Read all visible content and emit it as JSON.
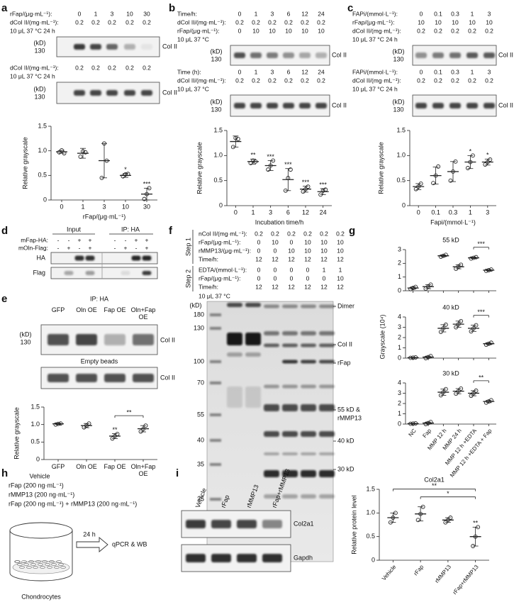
{
  "figure": {
    "a": {
      "letter": "a",
      "conditions": [
        {
          "label": "rFap/(μg·mL⁻¹):",
          "values": [
            0,
            1,
            3,
            10,
            30
          ]
        },
        {
          "label": "dCol II/(mg·mL⁻¹):",
          "values": [
            0.2,
            0.2,
            0.2,
            0.2,
            0.2
          ]
        }
      ],
      "note": "10 μL 37 °C 24 h",
      "conditions2": [
        {
          "label": "dCol II/(mg·mL⁻¹):",
          "values": [
            0.2,
            0.2,
            0.2,
            0.2,
            0.2
          ]
        }
      ],
      "note2": "10 μL 37 °C 24 h",
      "blots": [
        {
          "kd": "(kD)",
          "marker": 130,
          "label": "Col II"
        },
        {
          "kd": "(kD)",
          "marker": 130,
          "label": "Col II"
        }
      ]
    },
    "b": {
      "letter": "b",
      "conditions": [
        {
          "label": "Time/h:",
          "values": [
            0,
            1,
            3,
            6,
            12,
            24
          ]
        },
        {
          "label": "dCol II/(mg·mL⁻¹):",
          "values": [
            0.2,
            0.2,
            0.2,
            0.2,
            0.2,
            0.2
          ]
        },
        {
          "label": "rFap/(μg·mL⁻¹):",
          "values": [
            0,
            10,
            10,
            10,
            10,
            10
          ]
        }
      ],
      "note": "10 μL 37 °C",
      "conditions2": [
        {
          "label": "Time (h):",
          "values": [
            0,
            1,
            3,
            6,
            12,
            24
          ]
        },
        {
          "label": "dCol II/(mg·mL⁻¹):",
          "values": [
            0.2,
            0.2,
            0.2,
            0.2,
            0.2,
            0.2
          ]
        }
      ],
      "note2": "10 μL 37 °C",
      "blots": [
        {
          "kd": "(kD)",
          "marker": 130,
          "label": "Col II"
        },
        {
          "kd": "(kD)",
          "marker": 130,
          "label": "Col II"
        }
      ]
    },
    "c": {
      "letter": "c",
      "conditions": [
        {
          "label": "FAPi/(mmol·L⁻¹):",
          "values": [
            0,
            0.1,
            0.3,
            1,
            3
          ]
        },
        {
          "label": "rFap/(μg·mL⁻¹):",
          "values": [
            10,
            10,
            10,
            10,
            10
          ]
        },
        {
          "label": "dCol II/(mg·mL⁻¹):",
          "values": [
            0.2,
            0.2,
            0.2,
            0.2,
            0.2
          ]
        }
      ],
      "note": "10 μL 37 °C 24 h",
      "conditions2": [
        {
          "label": "FAPi/(mmol·L⁻¹):",
          "values": [
            0,
            0.1,
            0.3,
            1,
            3
          ]
        },
        {
          "label": "dCol II/(mg·mL⁻¹):",
          "values": [
            0.2,
            0.2,
            0.2,
            0.2,
            0.2
          ]
        }
      ],
      "note2": "10 μL 37 °C 24 h",
      "blots": [
        {
          "kd": "(kD)",
          "marker": 130,
          "label": "Col II"
        },
        {
          "kd": "(kD)",
          "marker": 130,
          "label": "Col II"
        }
      ]
    },
    "d": {
      "letter": "d",
      "input": "Input",
      "ip": "IP: HA",
      "rows": [
        {
          "label": "mFap-HA:",
          "values": [
            "-",
            "-",
            "+",
            "+",
            "-",
            "-",
            "+",
            "+"
          ]
        },
        {
          "label": "mOln-Flag:",
          "values": [
            "-",
            "+",
            "-",
            "+",
            "-",
            "+",
            "-",
            "+"
          ]
        }
      ],
      "blots": [
        "HA",
        "Flag"
      ]
    },
    "e": {
      "letter": "e",
      "ip": "IP: HA",
      "lanes": [
        "GFP",
        "Oln OE",
        "Fap OE",
        "Oln+Fap OE"
      ],
      "kd": "(kD)",
      "marker": 130,
      "label": "Col II",
      "empty": "Empty beads",
      "label2": "Col II"
    },
    "f": {
      "letter": "f",
      "step1": "Step 1",
      "step2": "Step 2",
      "rows1": [
        {
          "label": "nCol II/(mg·mL⁻¹):",
          "values": [
            0.2,
            0.2,
            0.2,
            0.2,
            0.2,
            0.2
          ]
        },
        {
          "label": "rFap/(μg·mL⁻¹):",
          "values": [
            0,
            10,
            0,
            10,
            10,
            10
          ]
        },
        {
          "label": "rMMP13/(μg·mL⁻¹):",
          "values": [
            0,
            0,
            10,
            10,
            10,
            10
          ]
        },
        {
          "label": "Time/h:",
          "values": [
            12,
            12,
            12,
            12,
            12,
            12
          ]
        }
      ],
      "rows2": [
        {
          "label": "EDTA/(mmol·L⁻¹):",
          "values": [
            0,
            0,
            0,
            0,
            1,
            1
          ]
        },
        {
          "label": "rFap/(μg·mL⁻¹):",
          "values": [
            0,
            0,
            0,
            0,
            0,
            10
          ]
        },
        {
          "label": "Time/h:",
          "values": [
            12,
            12,
            12,
            12,
            12,
            12
          ]
        }
      ],
      "note": "10 μL 37 °C",
      "kd": "(kD)",
      "markers": [
        180,
        130,
        100,
        70,
        55,
        40,
        35,
        25
      ],
      "bands": [
        "Dimer",
        "Col II",
        "rFap",
        "55 kD &",
        "rMMP13",
        "40 kD",
        "30 kD"
      ]
    },
    "g": {
      "letter": "g"
    },
    "h": {
      "letter": "h",
      "vehicle": "Vehicle",
      "treatments": [
        "rFap (200 ng·mL⁻¹)",
        "rMMP13 (200 ng·mL⁻¹)",
        "rFap (200 ng·mL⁻¹) + rMMP13 (200 ng·mL⁻¹)"
      ],
      "time": "24 h",
      "readout": "qPCR & WB",
      "cells": "Chondrocytes"
    },
    "i": {
      "letter": "i",
      "lanes": [
        "Vehicle",
        "rFap",
        "rMMP13",
        "rFap+rMMP13"
      ],
      "blots": [
        "Col2a1",
        "Gapdh"
      ]
    }
  },
  "chart_data": [
    {
      "type": "dot",
      "categories": [
        "0",
        "1",
        "3",
        "10",
        "30"
      ],
      "ylabel": "Relative grayscale",
      "xlabel": "rFap/(μg·mL⁻¹)",
      "ylim": [
        0,
        1.5
      ],
      "yticks": [
        0,
        0.5,
        {
          "value": 1,
          "label": "1.0"
        },
        1.5
      ],
      "color": "#222222",
      "values": [
        0.98,
        0.95,
        0.8,
        0.5,
        0.12
      ],
      "errors": [
        0.03,
        0.1,
        0.35,
        0.04,
        0.12
      ],
      "points": [
        [
          0.97,
          1.01,
          0.95
        ],
        [
          0.88,
          0.99,
          0.97
        ],
        [
          0.45,
          1.15,
          0.8
        ],
        [
          0.48,
          0.52,
          0.53
        ],
        [
          0.02,
          0.12,
          0.24
        ]
      ],
      "significance": [
        null,
        null,
        null,
        "*",
        "***"
      ]
    },
    {
      "type": "dot",
      "categories": [
        "0",
        "1",
        "3",
        "6",
        "12",
        "24"
      ],
      "ylabel": "Relative grayscale",
      "xlabel": "Incubation time/h",
      "ylim": [
        0,
        1.5
      ],
      "yticks": [
        0,
        0.5,
        {
          "value": 1,
          "label": "1.0"
        },
        1.5
      ],
      "color": "#222222",
      "values": [
        1.28,
        0.88,
        0.8,
        0.52,
        0.33,
        0.28
      ],
      "errors": [
        0.11,
        0.05,
        0.1,
        0.22,
        0.06,
        0.06
      ],
      "points": [
        [
          1.17,
          1.35,
          1.33
        ],
        [
          0.85,
          0.9,
          0.88
        ],
        [
          0.72,
          0.8,
          0.9
        ],
        [
          0.3,
          0.55,
          0.72
        ],
        [
          0.28,
          0.33,
          0.38
        ],
        [
          0.22,
          0.3,
          0.32
        ]
      ],
      "significance": [
        null,
        "**",
        "***",
        "***",
        "***",
        "***"
      ]
    },
    {
      "type": "dot",
      "categories": [
        "0",
        "0.1",
        "0.3",
        "1",
        "3"
      ],
      "ylabel": "Relative grayscale",
      "xlabel": "Fapi/(mmol·L⁻¹)",
      "ylim": [
        0,
        1.5
      ],
      "yticks": [
        0,
        0.5,
        {
          "value": 1,
          "label": "1.0"
        },
        1.5
      ],
      "color": "#222222",
      "values": [
        0.38,
        0.6,
        0.68,
        0.87,
        0.87
      ],
      "errors": [
        0.06,
        0.17,
        0.2,
        0.13,
        0.06
      ],
      "points": [
        [
          0.33,
          0.38,
          0.44
        ],
        [
          0.45,
          0.6,
          0.78
        ],
        [
          0.5,
          0.68,
          0.88
        ],
        [
          0.75,
          0.87,
          1.0
        ],
        [
          0.82,
          0.87,
          0.92
        ]
      ],
      "significance": [
        null,
        null,
        null,
        "*",
        "*"
      ]
    },
    {
      "type": "dot",
      "categories": [
        "GFP",
        "Oln OE",
        "Fap OE",
        "Oln+Fap OE"
      ],
      "ylabel": "Relative grayscale",
      "ylim": [
        0,
        1.5
      ],
      "yticks": [
        0,
        0.5,
        {
          "value": 1,
          "label": "1.0"
        },
        1.5
      ],
      "color": "#222222",
      "values": [
        1.02,
        0.97,
        0.67,
        0.88
      ],
      "errors": [
        0.02,
        0.06,
        0.07,
        0.09
      ],
      "points": [
        [
          1.0,
          1.02,
          1.03
        ],
        [
          0.92,
          0.97,
          1.03
        ],
        [
          0.6,
          0.67,
          0.73
        ],
        [
          0.8,
          0.87,
          0.97
        ]
      ],
      "significance": [
        null,
        null,
        "**",
        null
      ],
      "brackets": [
        {
          "from": 2,
          "to": 3,
          "label": "**"
        }
      ]
    },
    {
      "type": "dot",
      "categories": [
        "NC",
        "Fap",
        "MMP 12 h",
        "MMP 24 h",
        "MMP 12 h +EDTA",
        "MMP 12 h +EDTA + Fap"
      ],
      "ylabel": "Grayscale (10⁴)",
      "color": "#222222",
      "panels": [
        {
          "title": "55 kD",
          "ylim": [
            0,
            3
          ],
          "yticks": [
            0,
            1,
            2,
            3
          ],
          "values": [
            0.2,
            0.3,
            2.55,
            1.75,
            2.4,
            1.5
          ],
          "errors": [
            0.08,
            0.15,
            0.07,
            0.15,
            0.05,
            0.05
          ],
          "points": [
            [
              0.12,
              0.2,
              0.28
            ],
            [
              0.15,
              0.3,
              0.45
            ],
            [
              2.48,
              2.55,
              2.62
            ],
            [
              1.6,
              1.75,
              1.9
            ],
            [
              2.35,
              2.4,
              2.45
            ],
            [
              1.45,
              1.5,
              1.55
            ]
          ],
          "brackets": [
            {
              "from": 4,
              "to": 5,
              "label": "***"
            }
          ]
        },
        {
          "title": "40 kD",
          "ylim": [
            0,
            4
          ],
          "yticks": [
            0,
            1,
            2,
            3,
            4
          ],
          "values": [
            0.05,
            0.1,
            2.9,
            3.3,
            2.9,
            1.4
          ],
          "errors": [
            0.03,
            0.1,
            0.35,
            0.3,
            0.3,
            0.1
          ],
          "points": [
            [
              0.03,
              0.05,
              0.07
            ],
            [
              0.0,
              0.1,
              0.2
            ],
            [
              2.55,
              2.9,
              3.25
            ],
            [
              3.0,
              3.3,
              3.6
            ],
            [
              2.6,
              2.9,
              3.2
            ],
            [
              1.3,
              1.4,
              1.5
            ]
          ],
          "brackets": [
            {
              "from": 4,
              "to": 5,
              "label": "***"
            }
          ]
        },
        {
          "title": "30 kD",
          "ylim": [
            0,
            4
          ],
          "yticks": [
            0,
            1,
            2,
            3,
            4
          ],
          "values": [
            0.05,
            0.1,
            3.1,
            3.2,
            3.0,
            2.2
          ],
          "errors": [
            0.03,
            0.1,
            0.3,
            0.25,
            0.25,
            0.12
          ],
          "points": [
            [
              0.03,
              0.05,
              0.07
            ],
            [
              0.0,
              0.1,
              0.2
            ],
            [
              2.8,
              3.1,
              3.4
            ],
            [
              2.95,
              3.2,
              3.45
            ],
            [
              2.75,
              3.0,
              3.25
            ],
            [
              2.08,
              2.2,
              2.32
            ]
          ],
          "brackets": [
            {
              "from": 4,
              "to": 5,
              "label": "**"
            }
          ]
        }
      ]
    },
    {
      "type": "dot",
      "title": "Col2a1",
      "categories": [
        "Vehicle",
        "rFap",
        "rMMP13",
        "rFap+rMMP13"
      ],
      "ylabel": "Relative protein level",
      "ylim": [
        0,
        1.5
      ],
      "yticks": [
        0,
        0.5,
        {
          "value": 1,
          "label": "1.0"
        },
        1.5
      ],
      "color": "#222222",
      "values": [
        0.9,
        0.98,
        0.85,
        0.5
      ],
      "errors": [
        0.1,
        0.15,
        0.05,
        0.2
      ],
      "points": [
        [
          0.8,
          0.9,
          1.0
        ],
        [
          0.85,
          0.98,
          1.13
        ],
        [
          0.8,
          0.85,
          0.9
        ],
        [
          0.3,
          0.5,
          0.7
        ]
      ],
      "significance": [
        null,
        null,
        null,
        "**"
      ],
      "brackets": [
        {
          "from": 1,
          "to": 3,
          "label": "*"
        },
        {
          "from": 0,
          "to": 3,
          "label": "**"
        }
      ]
    }
  ]
}
